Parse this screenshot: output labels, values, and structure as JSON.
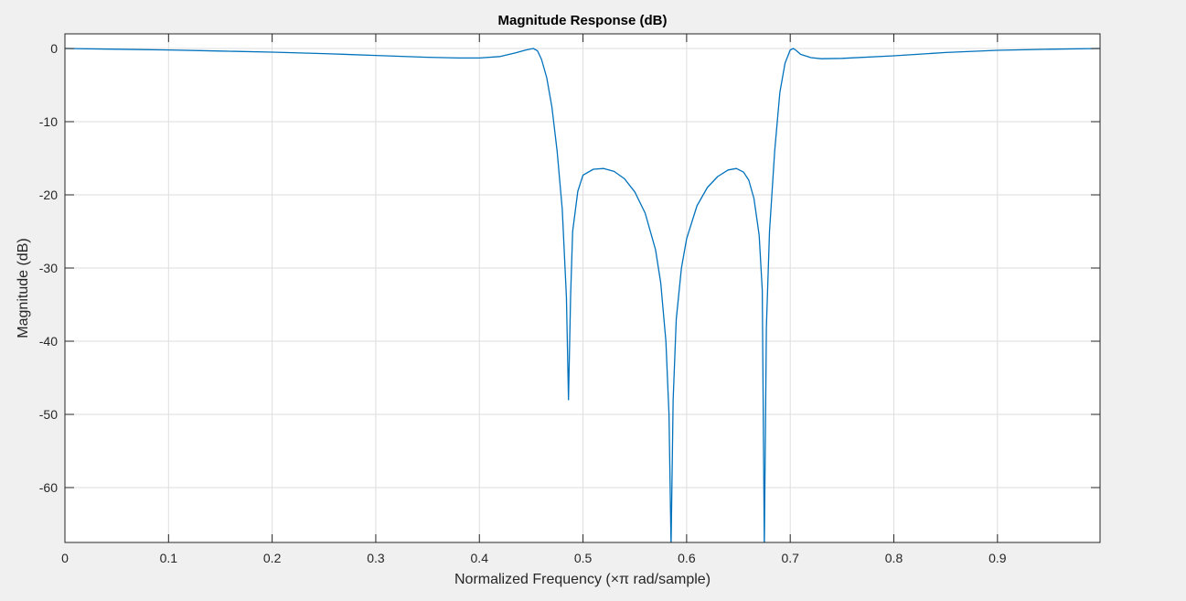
{
  "figure": {
    "background": "#f0f0f0"
  },
  "chart_data": {
    "type": "line",
    "title": "Magnitude Response (dB)",
    "xlabel": "Normalized  Frequency  (×π rad/sample)",
    "ylabel": "Magnitude (dB)",
    "xlim": [
      0,
      0.999
    ],
    "ylim": [
      -67.5,
      2
    ],
    "xticks": [
      0,
      0.1,
      0.2,
      0.3,
      0.4,
      0.5,
      0.6,
      0.7,
      0.8,
      0.9
    ],
    "xtick_labels": [
      "0",
      "0.1",
      "0.2",
      "0.3",
      "0.4",
      "0.5",
      "0.6",
      "0.7",
      "0.8",
      "0.9"
    ],
    "yticks": [
      0,
      -10,
      -20,
      -30,
      -40,
      -50,
      -60
    ],
    "ytick_labels": [
      "0",
      "-10",
      "-20",
      "-30",
      "-40",
      "-50",
      "-60"
    ],
    "grid": true,
    "legend": "none",
    "colors": {
      "line": "#0072bd",
      "axes_bg": "#ffffff",
      "grid": "#dedede",
      "axis": "#262626"
    },
    "series": [
      {
        "x": [
          0,
          0.05,
          0.1,
          0.15,
          0.2,
          0.25,
          0.3,
          0.35,
          0.38,
          0.4,
          0.42,
          0.435,
          0.445,
          0.452,
          0.456,
          0.46,
          0.465,
          0.47,
          0.475,
          0.48,
          0.484,
          0.486,
          0.488,
          0.49,
          0.495,
          0.5,
          0.51,
          0.52,
          0.53,
          0.54,
          0.55,
          0.56,
          0.57,
          0.575,
          0.58,
          0.583,
          0.585,
          0.587,
          0.59,
          0.595,
          0.6,
          0.61,
          0.62,
          0.63,
          0.64,
          0.648,
          0.655,
          0.66,
          0.665,
          0.67,
          0.673,
          0.675,
          0.677,
          0.68,
          0.685,
          0.69,
          0.695,
          0.7,
          0.703,
          0.706,
          0.71,
          0.72,
          0.73,
          0.75,
          0.8,
          0.85,
          0.9,
          0.95,
          0.999
        ],
        "y": [
          0,
          -0.1,
          -0.2,
          -0.35,
          -0.5,
          -0.7,
          -0.95,
          -1.2,
          -1.3,
          -1.3,
          -1.1,
          -0.6,
          -0.2,
          0,
          -0.3,
          -1.5,
          -4,
          -8,
          -14,
          -22,
          -34,
          -48,
          -34,
          -25,
          -19.5,
          -17.3,
          -16.5,
          -16.4,
          -16.8,
          -17.8,
          -19.6,
          -22.5,
          -27.5,
          -32,
          -40,
          -50,
          -68,
          -48,
          -37,
          -30,
          -26,
          -21.5,
          -19,
          -17.5,
          -16.6,
          -16.4,
          -16.9,
          -18,
          -20.5,
          -25.5,
          -33,
          -68,
          -38,
          -25,
          -14,
          -6,
          -2,
          -0.2,
          0,
          -0.3,
          -0.8,
          -1.25,
          -1.4,
          -1.35,
          -1.0,
          -0.55,
          -0.25,
          -0.1,
          0
        ]
      }
    ]
  }
}
